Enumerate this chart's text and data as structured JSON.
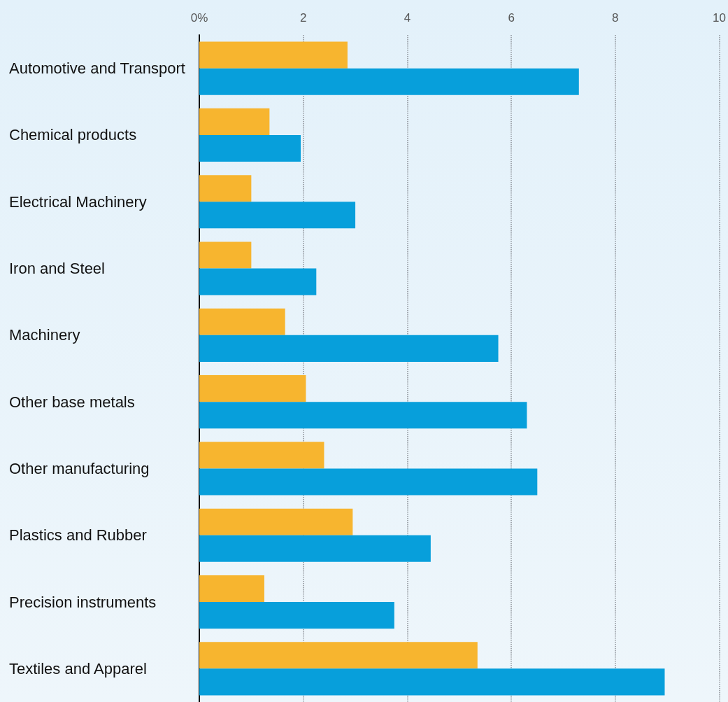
{
  "chart_data": {
    "type": "bar",
    "orientation": "horizontal",
    "categories": [
      "Automotive and Transport",
      "Chemical products",
      "Electrical Machinery",
      "Iron and Steel",
      "Machinery",
      "Other base metals",
      "Other manufacturing",
      "Plastics and Rubber",
      "Precision instruments",
      "Textiles and Apparel"
    ],
    "series": [
      {
        "color": "#f7b52f",
        "values": [
          2.85,
          1.35,
          1.0,
          1.0,
          1.65,
          2.05,
          2.4,
          2.95,
          1.25,
          5.35
        ]
      },
      {
        "color": "#079fdb",
        "values": [
          7.3,
          1.95,
          3.0,
          2.25,
          5.75,
          6.3,
          6.5,
          4.45,
          3.75,
          8.95
        ]
      }
    ],
    "xlim": [
      0,
      10
    ],
    "xticks": [
      {
        "value": 0,
        "label": "0%"
      },
      2,
      4,
      6,
      8,
      10
    ],
    "grid": "x"
  }
}
